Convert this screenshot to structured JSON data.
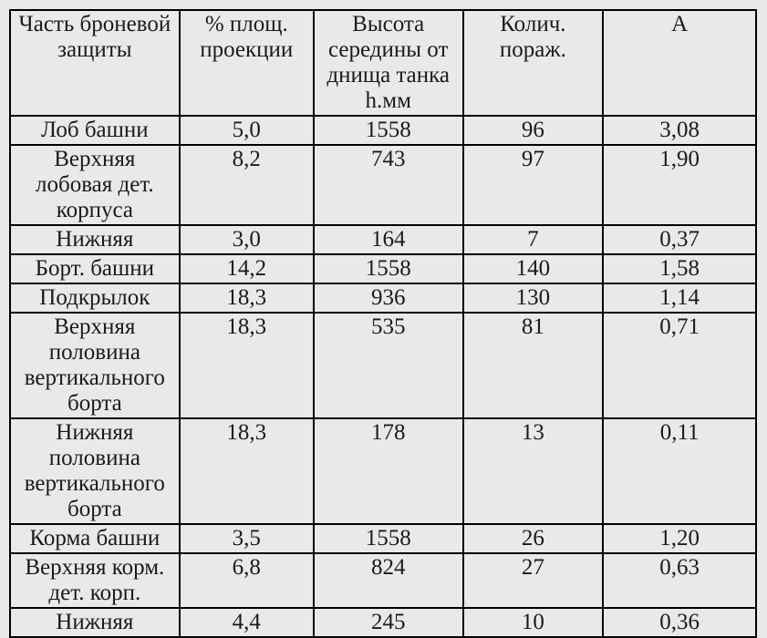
{
  "page": {
    "background_color": "#e9e9e7",
    "text_color": "#1b1b1b",
    "border_color": "#000000"
  },
  "table": {
    "headers": [
      "Часть броневой защиты",
      "% площ. проекции",
      "Высота середины от днища танка h.мм",
      "Колич. пораж.",
      "А"
    ],
    "rows": [
      {
        "part": "Лоб башни",
        "area_pct": "5,0",
        "height_mm": "1558",
        "hits": "96",
        "a": "3,08"
      },
      {
        "part": "Верхняя лобовая дет. корпуса",
        "area_pct": "8,2",
        "height_mm": "743",
        "hits": "97",
        "a": "1,90"
      },
      {
        "part": "Нижняя",
        "area_pct": "3,0",
        "height_mm": "164",
        "hits": "7",
        "a": "0,37"
      },
      {
        "part": "Борт. башни",
        "area_pct": "14,2",
        "height_mm": "1558",
        "hits": "140",
        "a": "1,58"
      },
      {
        "part": "Подкрылок",
        "area_pct": "18,3",
        "height_mm": "936",
        "hits": "130",
        "a": "1,14"
      },
      {
        "part": "Верхняя половина вертикального борта",
        "area_pct": "18,3",
        "height_mm": "535",
        "hits": "81",
        "a": "0,71"
      },
      {
        "part": "Нижняя половина вертикального борта",
        "area_pct": "18,3",
        "height_mm": "178",
        "hits": "13",
        "a": "0,11"
      },
      {
        "part": "Корма башни",
        "area_pct": "3,5",
        "height_mm": "1558",
        "hits": "26",
        "a": "1,20"
      },
      {
        "part": "Верхняя корм. дет. корп.",
        "area_pct": "6,8",
        "height_mm": "824",
        "hits": "27",
        "a": "0,63"
      },
      {
        "part": "Нижняя",
        "area_pct": "4,4",
        "height_mm": "245",
        "hits": "10",
        "a": "0,36"
      }
    ]
  }
}
